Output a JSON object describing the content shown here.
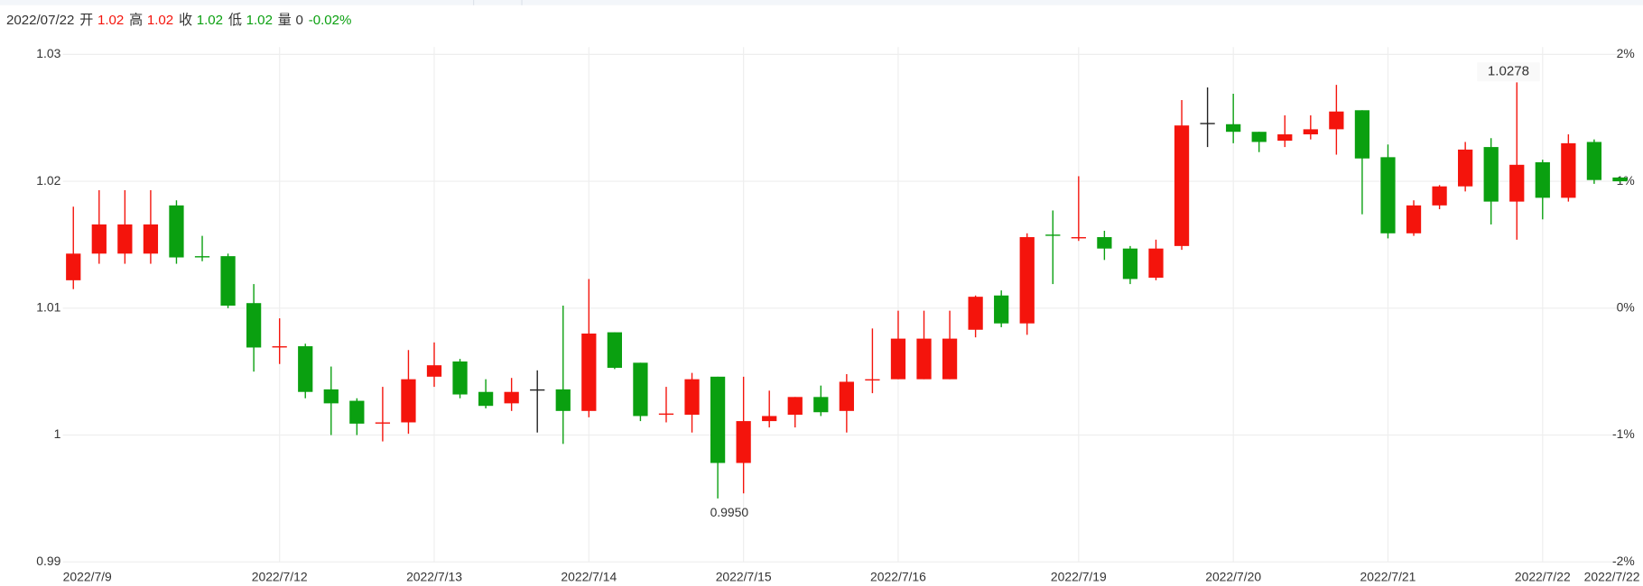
{
  "header": {
    "date": "2022/07/22",
    "items": [
      {
        "label": "开",
        "value": "1.02",
        "color": "#f4140c"
      },
      {
        "label": "高",
        "value": "1.02",
        "color": "#f4140c"
      },
      {
        "label": "收",
        "value": "1.02",
        "color": "#0aa010"
      },
      {
        "label": "低",
        "value": "1.02",
        "color": "#0aa010"
      },
      {
        "label": "量",
        "value": "0",
        "color": "#333333"
      }
    ],
    "change": "-0.02%",
    "change_color": "#0aa010"
  },
  "chart_data": {
    "type": "candlestick",
    "categories": [
      "2022/7/9",
      null,
      null,
      null,
      null,
      null,
      null,
      null,
      "2022/7/12",
      null,
      null,
      null,
      null,
      null,
      "2022/7/13",
      null,
      null,
      null,
      null,
      null,
      "2022/7/14",
      null,
      null,
      null,
      null,
      null,
      "2022/7/15",
      null,
      null,
      null,
      null,
      null,
      "2022/7/16",
      null,
      null,
      null,
      null,
      null,
      null,
      "2022/7/19",
      null,
      null,
      null,
      null,
      null,
      "2022/7/20",
      null,
      null,
      null,
      null,
      null,
      "2022/7/21",
      null,
      null,
      null,
      null,
      null,
      "2022/7/22",
      null,
      null,
      "2022/7/22"
    ],
    "open": [
      1.0122,
      1.0143,
      1.0143,
      1.0143,
      1.0181,
      1.0141,
      1.0141,
      1.0104,
      1.0069,
      1.007,
      1.0036,
      1.0027,
      1.0009,
      1.001,
      1.0046,
      1.0058,
      1.0034,
      1.0025,
      1.0036,
      1.0036,
      1.0019,
      1.0081,
      1.0057,
      1.0016,
      1.0016,
      1.0046,
      0.9978,
      1.0011,
      1.0016,
      1.003,
      1.0019,
      1.0043,
      1.0044,
      1.0044,
      1.0044,
      1.0083,
      1.011,
      1.0088,
      1.0158,
      1.0155,
      1.0156,
      1.0147,
      1.0124,
      1.0149,
      1.0246,
      1.0245,
      1.0239,
      1.0232,
      1.0237,
      1.0241,
      1.0256,
      1.0219,
      1.0159,
      1.0181,
      1.0196,
      1.0227,
      1.0184,
      1.0215,
      1.0187,
      1.0231,
      1.0203
    ],
    "close": [
      1.0143,
      1.0166,
      1.0166,
      1.0166,
      1.014,
      1.014,
      1.0102,
      1.0069,
      1.007,
      1.0034,
      1.0025,
      1.0009,
      1.001,
      1.0044,
      1.0055,
      1.0032,
      1.0023,
      1.0034,
      1.0036,
      1.0019,
      1.008,
      1.0053,
      1.0015,
      1.0017,
      1.0044,
      0.9978,
      1.0011,
      1.0015,
      1.003,
      1.0018,
      1.0042,
      1.0044,
      1.0076,
      1.0076,
      1.0076,
      1.0109,
      1.0088,
      1.0156,
      1.0157,
      1.0156,
      1.0147,
      1.0123,
      1.0147,
      1.0244,
      1.0246,
      1.0239,
      1.0231,
      1.0237,
      1.0241,
      1.0255,
      1.0218,
      1.0159,
      1.0181,
      1.0196,
      1.0225,
      1.0184,
      1.0213,
      1.0187,
      1.023,
      1.0201,
      1.02
    ],
    "high": [
      1.018,
      1.0193,
      1.0193,
      1.0193,
      1.0185,
      1.0157,
      1.0143,
      1.0119,
      1.0092,
      1.0072,
      1.0054,
      1.0029,
      1.0038,
      1.0067,
      1.0073,
      1.006,
      1.0044,
      1.0045,
      1.0051,
      1.0102,
      1.0123,
      1.0081,
      1.0057,
      1.0038,
      1.0049,
      1.0046,
      1.0046,
      1.0035,
      1.003,
      1.0039,
      1.0048,
      1.0084,
      1.0098,
      1.0098,
      1.0098,
      1.011,
      1.0114,
      1.0159,
      1.0177,
      1.0204,
      1.0161,
      1.0149,
      1.0154,
      1.0264,
      1.0274,
      1.0269,
      1.0239,
      1.0252,
      1.0252,
      1.0276,
      1.0256,
      1.0229,
      1.0185,
      1.0197,
      1.0231,
      1.0234,
      1.0278,
      1.0217,
      1.0237,
      1.0233,
      1.0203
    ],
    "low": [
      1.0115,
      1.0135,
      1.0135,
      1.0135,
      1.0135,
      1.0137,
      1.01,
      1.005,
      1.0056,
      1.0029,
      1.0,
      1.0,
      0.9995,
      1.0001,
      1.0038,
      1.0029,
      1.0021,
      1.0019,
      1.0002,
      0.9993,
      1.0014,
      1.0052,
      1.0011,
      1.001,
      1.0002,
      0.995,
      0.9954,
      1.0006,
      1.0006,
      1.0015,
      1.0002,
      1.0033,
      1.0044,
      1.0044,
      1.0044,
      1.0077,
      1.0085,
      1.0079,
      1.0119,
      1.0153,
      1.0138,
      1.0119,
      1.0122,
      1.0146,
      1.0227,
      1.023,
      1.0223,
      1.0227,
      1.0233,
      1.0221,
      1.0174,
      1.0155,
      1.0157,
      1.0178,
      1.0192,
      1.0166,
      1.0154,
      1.017,
      1.0184,
      1.0198,
      1.0199
    ],
    "up_color": "#f4140c",
    "down_color": "#0aa010",
    "flat_color": "#222222",
    "max_label": "1.0278",
    "min_label": "0.9950",
    "ylim": [
      0.99,
      1.03
    ],
    "yticks": [
      0.99,
      1,
      1.01,
      1.02,
      1.03
    ],
    "y2lim": [
      -2,
      2
    ],
    "y2ticks": [
      {
        "value": -2,
        "label": "-2%"
      },
      {
        "value": -1,
        "label": "-1%"
      },
      {
        "value": 0,
        "label": "0%"
      },
      {
        "value": 1,
        "label": "1%"
      },
      {
        "value": 2,
        "label": "2%"
      }
    ],
    "grid": true
  }
}
